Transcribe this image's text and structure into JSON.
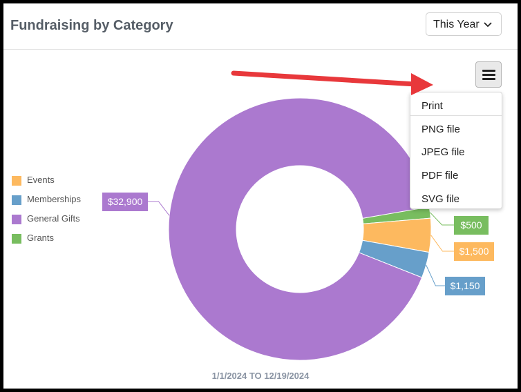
{
  "widget": {
    "title": "Fundraising by Category",
    "period_select": {
      "selected": "This Year"
    }
  },
  "export_menu": {
    "button_icon": "hamburger-menu-icon",
    "items": [
      "Print",
      "PNG file",
      "JPEG file",
      "PDF file",
      "SVG file"
    ]
  },
  "annotation": {
    "arrow_color": "#e8383b"
  },
  "date_range": "1/1/2024 TO 12/19/2024",
  "chart_data": {
    "type": "pie",
    "donut": true,
    "legend_position": "left",
    "slices": [
      {
        "name": "Events",
        "value": 1500,
        "label": "$1,500",
        "color": "#fdb95f"
      },
      {
        "name": "Memberships",
        "value": 1150,
        "label": "$1,150",
        "color": "#679fca"
      },
      {
        "name": "General Gifts",
        "value": 32900,
        "label": "$32,900",
        "color": "#ab79cf"
      },
      {
        "name": "Grants",
        "value": 500,
        "label": "$500",
        "color": "#78bd5f"
      }
    ]
  }
}
